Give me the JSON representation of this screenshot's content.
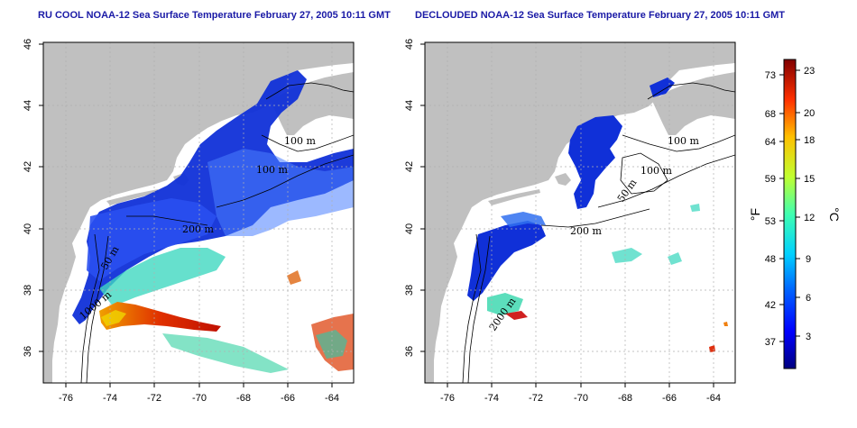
{
  "maps": [
    {
      "title": "RU COOL NOAA-12 Sea Surface Temperature February 27, 2005 10:11 GMT",
      "contour_labels": [
        "100 m",
        "100 m",
        "200 m",
        "50 m",
        "1000 m"
      ]
    },
    {
      "title": "DECLOUDED NOAA-12 Sea Surface Temperature February 27, 2005 10:11 GMT",
      "contour_labels": [
        "100 m",
        "100 m",
        "50 m",
        "200 m",
        "2000 m"
      ]
    }
  ],
  "axes": {
    "lon_ticks": [
      "-76",
      "-74",
      "-72",
      "-70",
      "-68",
      "-66",
      "-64"
    ],
    "lat_ticks": [
      "36",
      "38",
      "40",
      "42",
      "44",
      "46"
    ]
  },
  "colorbar": {
    "fahrenheit_label": "°F",
    "celsius_label": "°C",
    "fahrenheit_ticks": [
      "73",
      "68",
      "64",
      "59",
      "53",
      "48",
      "42",
      "37"
    ],
    "celsius_ticks": [
      "23",
      "20",
      "18",
      "15",
      "12",
      "9",
      "6",
      "3"
    ],
    "range_celsius": [
      0,
      24
    ]
  },
  "colors": {
    "land": "#c0c0c0",
    "title": "#1a1aa6",
    "cold": "#0a1fd0",
    "warm": "#d01010"
  }
}
